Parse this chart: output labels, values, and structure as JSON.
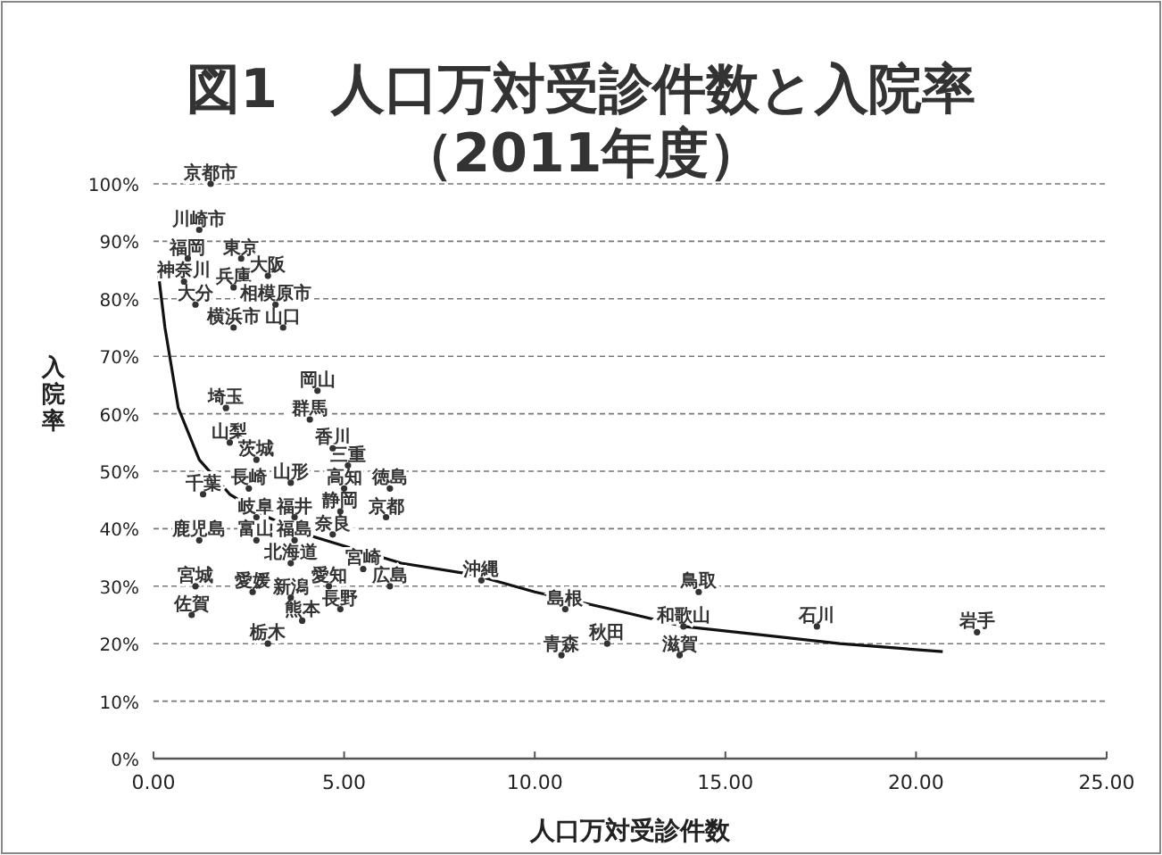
{
  "chart_data": {
    "type": "scatter",
    "title": "図1　人口万対受診件数と入院率",
    "subtitle": "（2011年度）",
    "xlabel": "人口万対受診件数",
    "ylabel": "入院率",
    "xlim": [
      0,
      25
    ],
    "xticks": [
      {
        "value": 0,
        "label": "0.00"
      },
      {
        "value": 5,
        "label": "5.00"
      },
      {
        "value": 10,
        "label": "10.00"
      },
      {
        "value": 15,
        "label": "15.00"
      },
      {
        "value": 20,
        "label": "20.00"
      },
      {
        "value": 25,
        "label": "25.00"
      }
    ],
    "ylim": [
      0,
      100
    ],
    "yticks": [
      {
        "value": 0,
        "label": "0%"
      },
      {
        "value": 10,
        "label": "10%"
      },
      {
        "value": 20,
        "label": "20%"
      },
      {
        "value": 30,
        "label": "30%"
      },
      {
        "value": 40,
        "label": "40%"
      },
      {
        "value": 50,
        "label": "50%"
      },
      {
        "value": 60,
        "label": "60%"
      },
      {
        "value": 70,
        "label": "70%"
      },
      {
        "value": 80,
        "label": "80%"
      },
      {
        "value": 90,
        "label": "90%"
      },
      {
        "value": 100,
        "label": "100%"
      }
    ],
    "grid": "y",
    "series": [
      {
        "color": "#333333",
        "marker": "circle",
        "x": [
          1.5,
          1.2,
          0.9,
          2.3,
          0.8,
          2.1,
          3.0,
          1.1,
          3.2,
          2.1,
          3.4,
          4.3,
          1.9,
          4.1,
          2.0,
          4.7,
          2.7,
          5.1,
          1.3,
          2.5,
          3.6,
          5.0,
          6.2,
          2.7,
          3.7,
          4.9,
          6.1,
          1.2,
          2.7,
          3.7,
          4.7,
          3.6,
          5.5,
          1.1,
          2.6,
          4.6,
          6.2,
          3.6,
          4.9,
          1.0,
          3.9,
          3.0,
          8.6,
          14.3,
          10.8,
          13.9,
          17.4,
          21.6,
          11.9,
          10.7,
          13.8
        ],
        "values": [
          100,
          92,
          87,
          87,
          83,
          82,
          84,
          79,
          79,
          75,
          75,
          64,
          61,
          59,
          55,
          54,
          52,
          51,
          46,
          47,
          48,
          47,
          47,
          42,
          42,
          43,
          42,
          38,
          38,
          38,
          39,
          34,
          33,
          30,
          29,
          30,
          30,
          28,
          26,
          25,
          24,
          20,
          31,
          29,
          26,
          23,
          23,
          22,
          20,
          18,
          18
        ],
        "value_labels": [
          "京都市",
          "川崎市",
          "福岡",
          "東京",
          "神奈川",
          "兵庫",
          "大阪",
          "大分",
          "相模原市",
          "横浜市",
          "山口",
          "岡山",
          "埼玉",
          "群馬",
          "山梨",
          "香川",
          "茨城",
          "三重",
          "千葉",
          "長崎",
          "山形",
          "高知",
          "徳島",
          "岐阜",
          "福井",
          "静岡",
          "京都",
          "鹿児島",
          "富山",
          "福島",
          "奈良",
          "北海道",
          "宮崎",
          "宮城",
          "愛媛",
          "愛知",
          "広島",
          "新潟",
          "長野",
          "佐賀",
          "熊本",
          "栃木",
          "沖縄",
          "鳥取",
          "島根",
          "和歌山",
          "石川",
          "岩手",
          "秋田",
          "青森",
          "滋賀"
        ]
      },
      {
        "type": "line",
        "color": "#111111",
        "line_style": "solid",
        "x": [
          0.1,
          0.3,
          0.65,
          1.2,
          2,
          3,
          4,
          5,
          6.5,
          8.4,
          10,
          12,
          13.9,
          16,
          18,
          20.7
        ],
        "values": [
          86,
          75,
          61,
          52,
          46,
          42,
          39,
          37,
          34,
          32,
          29,
          26,
          23,
          21.5,
          20,
          18.6
        ]
      }
    ]
  }
}
